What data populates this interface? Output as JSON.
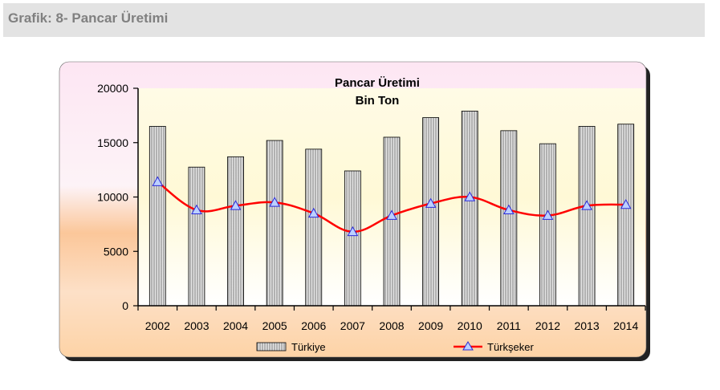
{
  "header": {
    "title": "Grafik: 8- Pancar Üretimi"
  },
  "colors": {
    "bar_fill": "#d9d9d9",
    "line": "#ff0000",
    "marker_fill": "#bcd0ff",
    "marker_stroke": "#2b2bd9",
    "plot_bg": "#ffffe0",
    "header_bg": "#e3e3e3"
  },
  "chart_data": {
    "type": "bar",
    "title": "Pancar Üretimi",
    "subtitle": "Bin Ton",
    "xlabel": "",
    "ylabel": "",
    "ylim": [
      0,
      20000
    ],
    "yticks": [
      0,
      5000,
      10000,
      15000,
      20000
    ],
    "grid": false,
    "legend_position": "bottom",
    "categories": [
      "2002",
      "2003",
      "2004",
      "2005",
      "2006",
      "2007",
      "2008",
      "2009",
      "2010",
      "2011",
      "2012",
      "2013",
      "2014"
    ],
    "series": [
      {
        "name": "Türkiye",
        "type": "bar",
        "values": [
          16500,
          12750,
          13700,
          15200,
          14400,
          12400,
          15500,
          17300,
          17900,
          16100,
          14900,
          16500,
          16700
        ]
      },
      {
        "name": "Türkşeker",
        "type": "line",
        "values": [
          11400,
          8800,
          9200,
          9500,
          8500,
          6800,
          8300,
          9400,
          10000,
          8800,
          8300,
          9200,
          9300
        ]
      }
    ]
  }
}
